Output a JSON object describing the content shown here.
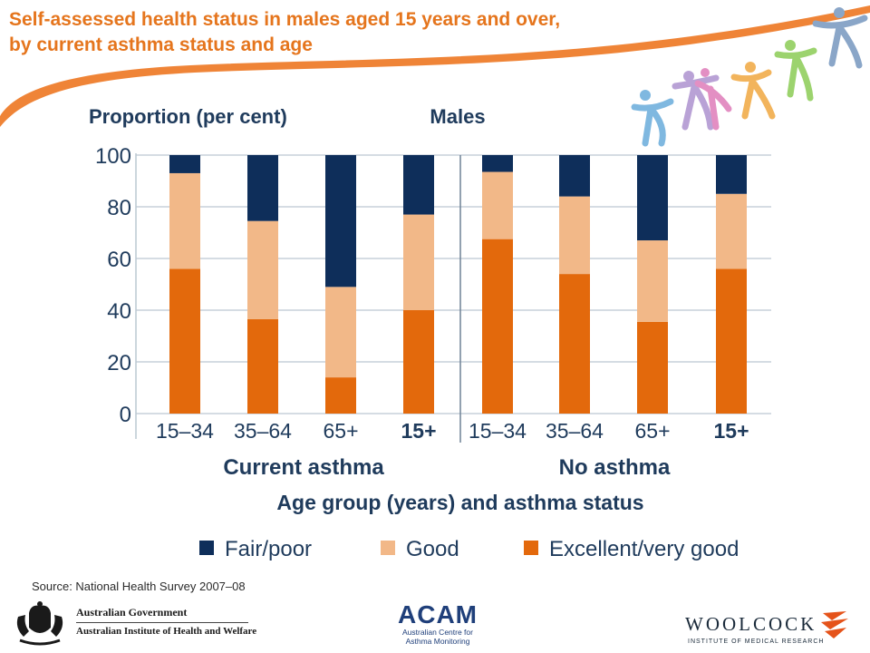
{
  "slide": {
    "title_line1": "Self-assessed health status in males aged 15 years and over,",
    "title_line2": "by current asthma status and age",
    "source": "Source: National Health Survey 2007–08"
  },
  "colors": {
    "title": "#e5751d",
    "fair_poor": "#0e2e5a",
    "good": "#f2b888",
    "excellent": "#e3690c",
    "gridline": "#bcc8d2",
    "axis_text": "#1f3b5c",
    "banner": "#ee7d2c"
  },
  "footer": {
    "aihw_gov": "Australian Government",
    "aihw_institute": "Australian Institute of Health and Welfare",
    "acam_name": "ACAM",
    "acam_sub1": "Australian Centre for",
    "acam_sub2": "Asthma Monitoring",
    "woolcock_name": "WOOLCOCK",
    "woolcock_sub": "INSTITUTE OF MEDICAL RESEARCH"
  },
  "chart_data": {
    "type": "bar",
    "stacked": true,
    "title": "Males",
    "ylabel": "Proportion (per cent)",
    "xlabel": "Age group (years) and asthma status",
    "ylim": [
      0,
      100
    ],
    "yticks": [
      0,
      20,
      40,
      60,
      80,
      100
    ],
    "grid": true,
    "legend_position": "bottom",
    "groups": [
      {
        "name": "Current asthma",
        "categories": [
          "15–34",
          "35–64",
          "65+",
          "15+"
        ]
      },
      {
        "name": "No asthma",
        "categories": [
          "15–34",
          "35–64",
          "65+",
          "15+"
        ]
      }
    ],
    "bold_categories": [
      "15+"
    ],
    "categories": [
      "15–34",
      "35–64",
      "65+",
      "15+",
      "15–34",
      "35–64",
      "65+",
      "15+"
    ],
    "series": [
      {
        "name": "Excellent/very good",
        "values": [
          56,
          36.5,
          14,
          40,
          67.5,
          54,
          35.5,
          56
        ]
      },
      {
        "name": "Good",
        "values": [
          37,
          38,
          35,
          37,
          26,
          30,
          31.5,
          29
        ]
      },
      {
        "name": "Fair/poor",
        "values": [
          7,
          25.5,
          51,
          23,
          6.5,
          16,
          33,
          15
        ]
      }
    ],
    "legend": [
      "Fair/poor",
      "Good",
      "Excellent/very good"
    ]
  }
}
